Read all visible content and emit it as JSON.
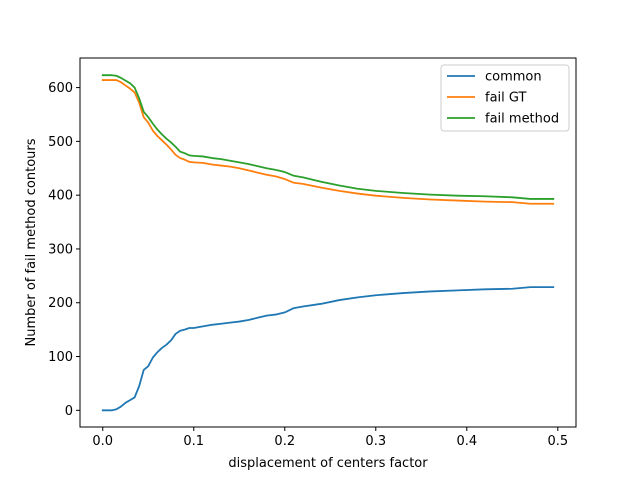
{
  "chart_data": {
    "type": "line",
    "title": "",
    "xlabel": "displacement of centers factor",
    "ylabel": "Number of fail method contours",
    "xlim": [
      -0.025,
      0.52
    ],
    "ylim": [
      -31,
      655
    ],
    "xticks": [
      0.0,
      0.1,
      0.2,
      0.3,
      0.4,
      0.5
    ],
    "xtick_labels": [
      "0.0",
      "0.1",
      "0.2",
      "0.3",
      "0.4",
      "0.5"
    ],
    "yticks": [
      0,
      100,
      200,
      300,
      400,
      500,
      600
    ],
    "ytick_labels": [
      "0",
      "100",
      "200",
      "300",
      "400",
      "500",
      "600"
    ],
    "grid": false,
    "legend_position": "top-right",
    "series": [
      {
        "name": "common",
        "color": "#1f77b4",
        "x": [
          0,
          0.01,
          0.015,
          0.02,
          0.025,
          0.03,
          0.035,
          0.04,
          0.045,
          0.05,
          0.055,
          0.06,
          0.065,
          0.07,
          0.075,
          0.08,
          0.085,
          0.09,
          0.095,
          0.1,
          0.11,
          0.12,
          0.13,
          0.14,
          0.15,
          0.16,
          0.17,
          0.18,
          0.19,
          0.2,
          0.21,
          0.22,
          0.24,
          0.26,
          0.28,
          0.3,
          0.33,
          0.36,
          0.39,
          0.42,
          0.45,
          0.47,
          0.495
        ],
        "y": [
          0,
          0,
          2,
          7,
          14,
          19,
          24,
          45,
          75,
          82,
          98,
          108,
          116,
          122,
          130,
          142,
          148,
          150,
          153,
          153,
          156,
          159,
          161,
          163,
          165,
          168,
          172,
          176,
          178,
          182,
          190,
          193,
          198,
          205,
          210,
          214,
          218,
          221,
          223,
          225,
          226,
          229,
          229
        ]
      },
      {
        "name": "fail GT",
        "color": "#ff7f0e",
        "x": [
          0,
          0.015,
          0.02,
          0.025,
          0.03,
          0.035,
          0.04,
          0.045,
          0.05,
          0.055,
          0.06,
          0.065,
          0.07,
          0.075,
          0.08,
          0.085,
          0.09,
          0.095,
          0.1,
          0.11,
          0.12,
          0.13,
          0.14,
          0.15,
          0.16,
          0.17,
          0.18,
          0.19,
          0.2,
          0.21,
          0.22,
          0.24,
          0.26,
          0.28,
          0.3,
          0.33,
          0.36,
          0.39,
          0.42,
          0.45,
          0.47,
          0.495
        ],
        "y": [
          614,
          614,
          610,
          604,
          598,
          591,
          572,
          545,
          535,
          520,
          510,
          502,
          494,
          485,
          475,
          469,
          466,
          462,
          461,
          460,
          457,
          455,
          453,
          450,
          446,
          442,
          438,
          435,
          430,
          423,
          421,
          414,
          408,
          403,
          399,
          395,
          392,
          390,
          388,
          387,
          384,
          384
        ]
      },
      {
        "name": "fail method",
        "color": "#2ca02c",
        "x": [
          0,
          0.01,
          0.015,
          0.02,
          0.025,
          0.03,
          0.035,
          0.04,
          0.045,
          0.05,
          0.055,
          0.06,
          0.065,
          0.07,
          0.075,
          0.08,
          0.085,
          0.09,
          0.095,
          0.1,
          0.11,
          0.12,
          0.13,
          0.14,
          0.15,
          0.16,
          0.17,
          0.18,
          0.19,
          0.2,
          0.21,
          0.22,
          0.24,
          0.26,
          0.28,
          0.3,
          0.33,
          0.36,
          0.39,
          0.42,
          0.45,
          0.47,
          0.495
        ],
        "y": [
          623,
          623,
          622,
          618,
          613,
          608,
          600,
          580,
          555,
          545,
          533,
          522,
          513,
          505,
          498,
          490,
          481,
          478,
          474,
          473,
          472,
          469,
          467,
          464,
          461,
          458,
          454,
          450,
          447,
          443,
          436,
          433,
          425,
          418,
          412,
          408,
          404,
          401,
          399,
          398,
          396,
          393,
          393
        ]
      }
    ]
  }
}
